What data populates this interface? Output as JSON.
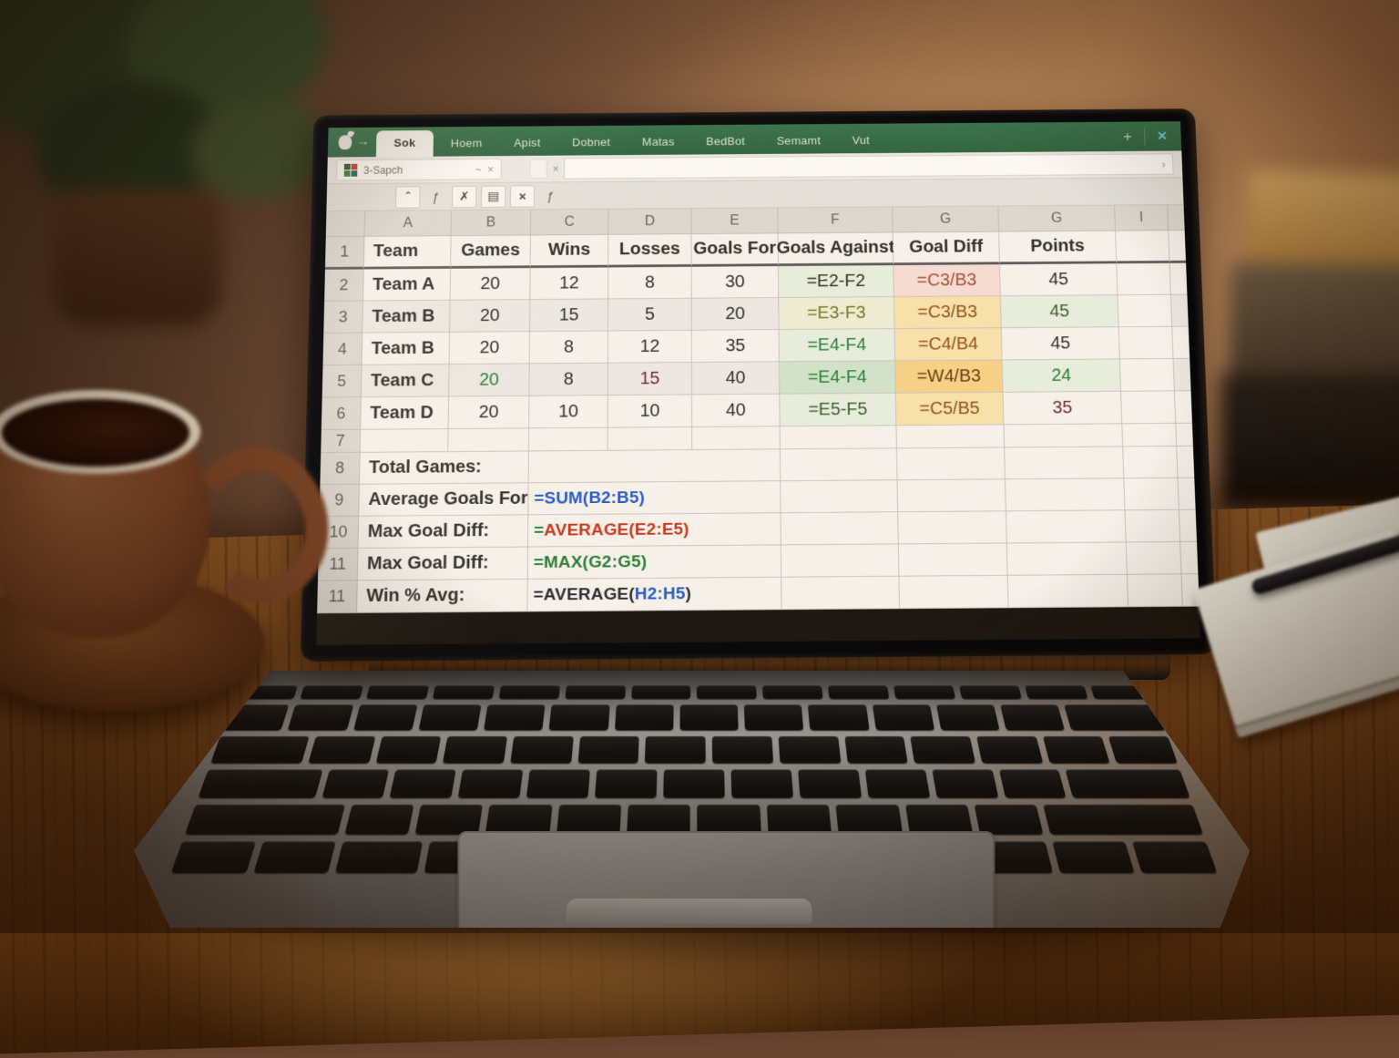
{
  "excel": {
    "titlebar": {
      "forward_glyph": "→",
      "tabs": [
        {
          "label": "Sok",
          "active": true
        },
        {
          "label": "Hoem",
          "active": false
        },
        {
          "label": "Apist",
          "active": false
        },
        {
          "label": "Dobnet",
          "active": false
        },
        {
          "label": "Matas",
          "active": false
        },
        {
          "label": "BedBot",
          "active": false
        },
        {
          "label": "Semamt",
          "active": false
        },
        {
          "label": "Vut",
          "active": false
        }
      ],
      "window": {
        "share_glyph": "+",
        "close_glyph": "×"
      }
    },
    "namebox": {
      "text": "3-Sapch",
      "tilde_glyph": "~",
      "close_glyph": "×",
      "aux_close_glyph": "×"
    },
    "formulabar": {
      "value": "",
      "chevron_glyph": "›"
    },
    "toolbar": {
      "buttons": [
        {
          "name": "caret-button",
          "glyph": "ˆ",
          "boxed": true
        },
        {
          "name": "fx-label",
          "glyph": "ƒ",
          "boxed": false
        },
        {
          "name": "cut-button",
          "glyph": "✗",
          "boxed": true
        },
        {
          "name": "paste-button",
          "glyph": "▤",
          "boxed": true
        },
        {
          "name": "cancel-button",
          "glyph": "×",
          "boxed": true
        },
        {
          "name": "fx-label-2",
          "glyph": "ƒ",
          "boxed": false
        }
      ]
    },
    "sheet": {
      "col_letters": [
        "A",
        "B",
        "C",
        "D",
        "E",
        "F",
        "G",
        "G",
        "I"
      ],
      "rows": [
        {
          "n": "1",
          "type": "data",
          "hdr": true,
          "cells": [
            {
              "t": "Team",
              "b": true,
              "left": true
            },
            {
              "t": "Games",
              "b": true
            },
            {
              "t": "Wins",
              "b": true
            },
            {
              "t": "Losses",
              "b": true
            },
            {
              "t": "Goals For",
              "b": true
            },
            {
              "t": "Goals Against",
              "b": true
            },
            {
              "t": "Goal Diff",
              "b": true
            },
            {
              "t": "Points",
              "b": true
            },
            {
              "t": ""
            }
          ]
        },
        {
          "n": "2",
          "type": "data",
          "cells": [
            {
              "t": "Team A",
              "b": true,
              "left": true
            },
            {
              "t": "20"
            },
            {
              "t": "12"
            },
            {
              "t": "8"
            },
            {
              "t": "30"
            },
            {
              "t": "=E2-F2",
              "bg": "bg-g1"
            },
            {
              "t": "=C3/B3",
              "bg": "bg-pk",
              "fg": "fg-rb"
            },
            {
              "t": "45"
            },
            {
              "t": ""
            }
          ]
        },
        {
          "n": "3",
          "type": "data",
          "zebra": true,
          "cells": [
            {
              "t": "Team B",
              "b": true,
              "left": true
            },
            {
              "t": "20"
            },
            {
              "t": "15"
            },
            {
              "t": "5"
            },
            {
              "t": "20"
            },
            {
              "t": "=E3-F3",
              "bg": "bg-g3",
              "fg": "fg-ol"
            },
            {
              "t": "=C3/B3",
              "bg": "bg-or",
              "fg": "fg-br"
            },
            {
              "t": "45",
              "bg": "bg-g1",
              "fg": "fg-dg"
            },
            {
              "t": ""
            }
          ]
        },
        {
          "n": "4",
          "type": "data",
          "cells": [
            {
              "t": "Team B",
              "b": true,
              "left": true
            },
            {
              "t": "20"
            },
            {
              "t": "8"
            },
            {
              "t": "12"
            },
            {
              "t": "35"
            },
            {
              "t": "=E4-F4",
              "bg": "bg-g1",
              "fg": "fg-gr"
            },
            {
              "t": "=C4/B4",
              "bg": "bg-or",
              "fg": "fg-br"
            },
            {
              "t": "45"
            },
            {
              "t": ""
            }
          ]
        },
        {
          "n": "5",
          "type": "data",
          "zebra": true,
          "cells": [
            {
              "t": "Team C",
              "b": true,
              "left": true
            },
            {
              "t": "20",
              "fg": "fg-gr"
            },
            {
              "t": "8"
            },
            {
              "t": "15",
              "fg": "fg-dr"
            },
            {
              "t": "40"
            },
            {
              "t": "=E4-F4",
              "bg": "bg-g2",
              "fg": "fg-gr"
            },
            {
              "t": "=W4/B3",
              "bg": "bg-or2",
              "fg": "fg-db"
            },
            {
              "t": "24",
              "bg": "bg-g1",
              "fg": "fg-gr"
            },
            {
              "t": ""
            }
          ]
        },
        {
          "n": "6",
          "type": "data",
          "cells": [
            {
              "t": "Team D",
              "b": true,
              "left": true
            },
            {
              "t": "20"
            },
            {
              "t": "10"
            },
            {
              "t": "10"
            },
            {
              "t": "40"
            },
            {
              "t": "=E5-F5",
              "bg": "bg-g1",
              "fg": "fg-dg"
            },
            {
              "t": "=C5/B5",
              "bg": "bg-or",
              "fg": "fg-br"
            },
            {
              "t": "35",
              "fg": "fg-dr"
            },
            {
              "t": ""
            }
          ]
        },
        {
          "n": "7",
          "type": "empty"
        },
        {
          "n": "8",
          "type": "formula",
          "label": "Total Games:",
          "formula": []
        },
        {
          "n": "9",
          "type": "formula",
          "label": "Average Goals For:",
          "formula": [
            {
              "t": "=SUM(B2:B5)",
              "fg": "fg-bl"
            }
          ]
        },
        {
          "n": "10",
          "type": "formula",
          "label": "Max Goal Diff:",
          "formula": [
            {
              "t": "=",
              "fg": "fg-gr"
            },
            {
              "t": "AVERAGE(E2:E5)",
              "fg": "fg-red"
            }
          ]
        },
        {
          "n": "11",
          "type": "formula",
          "label": "Max Goal Diff:",
          "formula": [
            {
              "t": "=MAX(G2:G5)",
              "fg": "fg-gr"
            }
          ]
        },
        {
          "n": "11",
          "type": "formula",
          "label": "Win % Avg:",
          "formula": [
            {
              "t": "=AVERAGE(",
              "fg": "fg-dk"
            },
            {
              "t": "H2:H5",
              "fg": "fg-bl"
            },
            {
              "t": ")",
              "fg": "fg-dk"
            }
          ]
        }
      ]
    }
  }
}
